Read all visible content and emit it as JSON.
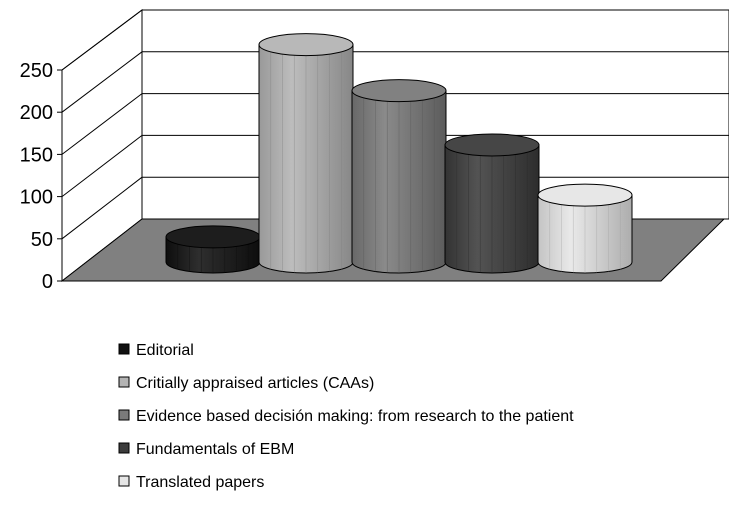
{
  "chart_data": {
    "type": "bar",
    "style": "3d-cylinder",
    "title": "",
    "xlabel": "",
    "ylabel": "",
    "ylim": [
      0,
      250
    ],
    "yticks": [
      0,
      50,
      100,
      150,
      200,
      250
    ],
    "grid": true,
    "legend_position": "bottom",
    "series": [
      {
        "name": "Editorial",
        "values": [
          30
        ],
        "color": "#111111"
      },
      {
        "name": "Critially appraised articles (CAAs)",
        "values": [
          260
        ],
        "color": "#b4b4b4"
      },
      {
        "name": "Evidence based decisión making: from research to the patient",
        "values": [
          205
        ],
        "color": "#7a7a7a"
      },
      {
        "name": "Fundamentals of EBM",
        "values": [
          140
        ],
        "color": "#3c3c3c"
      },
      {
        "name": "Translated papers",
        "values": [
          80
        ],
        "color": "#e6e6e6"
      }
    ]
  }
}
